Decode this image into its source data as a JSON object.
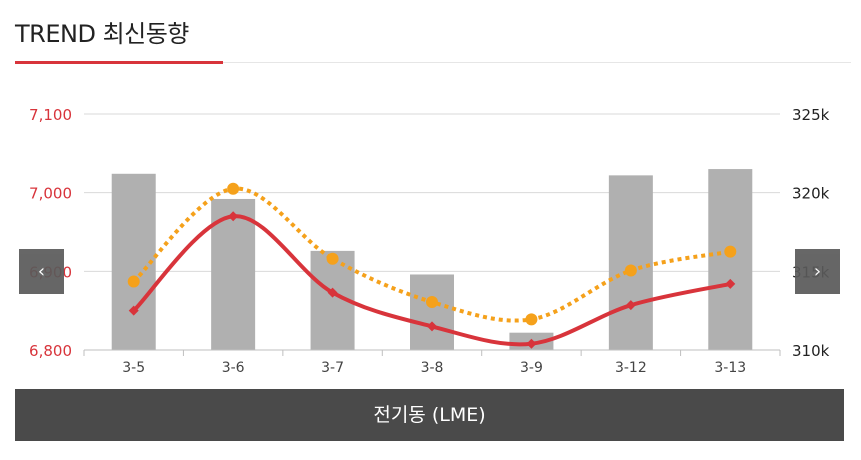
{
  "header": {
    "title": "TREND 최신동향"
  },
  "nav": {
    "prev": "‹",
    "next": "›"
  },
  "footer": {
    "label": "전기동 (LME)"
  },
  "colors": {
    "accent": "#d8343b",
    "bar": "#b0b0b0",
    "orange": "#f5a11b",
    "red": "#d8343b"
  },
  "chart_data": {
    "type": "bar",
    "categories": [
      "3-5",
      "3-6",
      "3-7",
      "3-8",
      "3-9",
      "3-12",
      "3-13"
    ],
    "left_axis": {
      "ticks": [
        "7,100",
        "7,000",
        "6,900",
        "6,800"
      ],
      "ylim": [
        6800,
        7100
      ]
    },
    "right_axis": {
      "ticks": [
        "325k",
        "320k",
        "315k",
        "310k"
      ],
      "ylim": [
        310,
        325
      ]
    },
    "series": [
      {
        "kind": "bar",
        "axis": "right",
        "color": "#b0b0b0",
        "values": [
          321.2,
          319.6,
          316.3,
          314.8,
          311.1,
          321.1,
          321.5
        ]
      },
      {
        "kind": "line",
        "axis": "left",
        "style": "dotted",
        "color": "#f5a11b",
        "marker": "circle",
        "values": [
          6887,
          7005,
          6916,
          6861,
          6839,
          6901,
          6925
        ]
      },
      {
        "kind": "line",
        "axis": "left",
        "style": "solid",
        "color": "#d8343b",
        "marker": "diamond",
        "values": [
          6850,
          6970,
          6873,
          6830,
          6808,
          6857,
          6884
        ]
      }
    ],
    "grid": true,
    "legend": "none"
  }
}
